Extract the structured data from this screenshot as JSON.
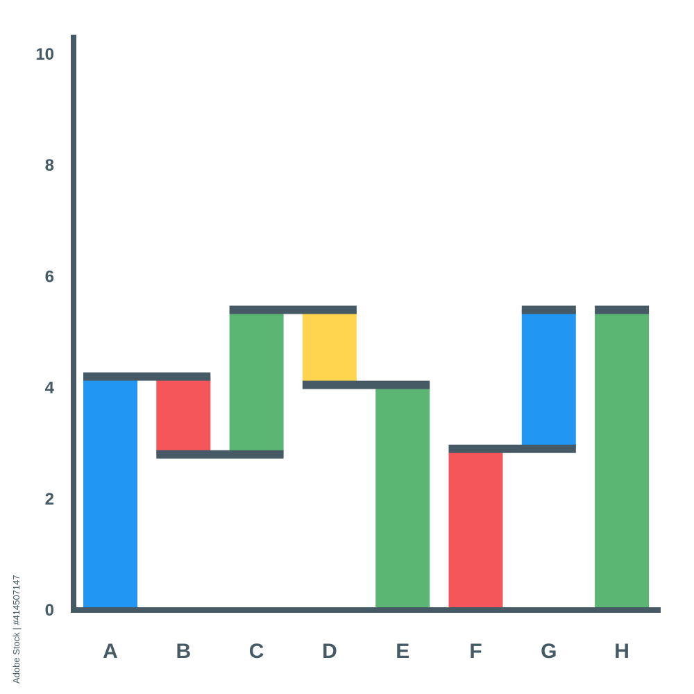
{
  "chart_data": {
    "type": "bar",
    "subtype": "waterfall",
    "title": "",
    "xlabel": "",
    "ylabel": "",
    "categories": [
      "A",
      "B",
      "C",
      "D",
      "E",
      "F",
      "G",
      "H"
    ],
    "bars": [
      {
        "category": "A",
        "start": 0.0,
        "end": 4.2,
        "color": "#2196f3"
      },
      {
        "category": "B",
        "start": 4.2,
        "end": 2.8,
        "color": "#f45659"
      },
      {
        "category": "C",
        "start": 2.8,
        "end": 5.4,
        "color": "#5bb673"
      },
      {
        "category": "D",
        "start": 5.4,
        "end": 4.05,
        "color": "#ffd54f"
      },
      {
        "category": "E",
        "start": 4.05,
        "end": 0.0,
        "color": "#5bb673"
      },
      {
        "category": "F",
        "start": 0.0,
        "end": 2.9,
        "color": "#f45659"
      },
      {
        "category": "G",
        "start": 2.9,
        "end": 5.4,
        "color": "#2196f3"
      },
      {
        "category": "H",
        "start": 0.0,
        "end": 5.4,
        "color": "#5bb673"
      }
    ],
    "yticks": [
      0,
      2,
      4,
      6,
      8,
      10
    ],
    "ylim": [
      0,
      10
    ],
    "grid": false,
    "legend": "none",
    "axis_color": "#455a64"
  },
  "watermark": {
    "text": "Adobe Stock | #414507147"
  }
}
